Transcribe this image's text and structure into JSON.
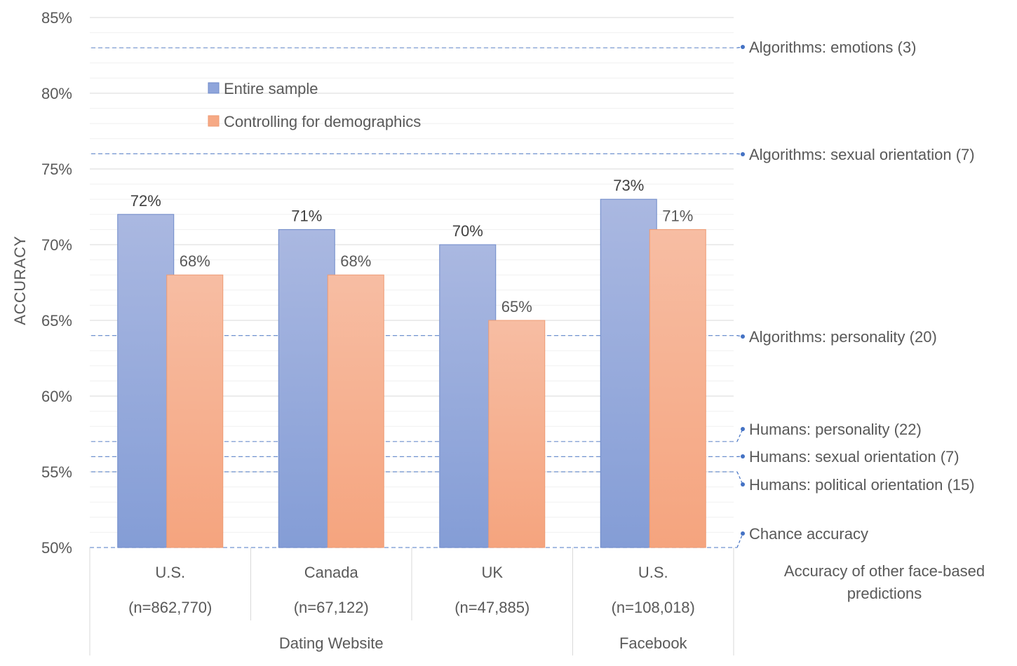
{
  "chart_data": {
    "type": "bar",
    "title": "",
    "xlabel": "",
    "ylabel": "ACCURACY",
    "ylim": [
      50,
      85
    ],
    "y_ticks": [
      "50%",
      "55%",
      "60%",
      "65%",
      "70%",
      "75%",
      "80%",
      "85%"
    ],
    "y_tick_values": [
      50,
      55,
      60,
      65,
      70,
      75,
      80,
      85
    ],
    "grid": true,
    "legend_position": "top-left",
    "categories": [
      {
        "label": "U.S.",
        "n": "(n=862,770)",
        "group": "Dating Website"
      },
      {
        "label": "Canada",
        "n": "(n=67,122)",
        "group": "Dating Website"
      },
      {
        "label": "UK",
        "n": "(n=47,885)",
        "group": "Dating Website"
      },
      {
        "label": "U.S.",
        "n": "(n=108,018)",
        "group": "Facebook"
      }
    ],
    "groups": [
      {
        "label": "Dating Website",
        "span": 3
      },
      {
        "label": "Facebook",
        "span": 1
      }
    ],
    "series": [
      {
        "name": "Entire sample",
        "color": "#8FA5DB",
        "values": [
          72,
          71,
          70,
          73
        ],
        "labels": [
          "72%",
          "71%",
          "70%",
          "73%"
        ]
      },
      {
        "name": "Controlling for demographics",
        "color": "#F6A985",
        "values": [
          68,
          68,
          65,
          71
        ],
        "labels": [
          "68%",
          "68%",
          "65%",
          "71%"
        ]
      }
    ],
    "reference_lines": [
      {
        "label": "Algorithms: emotions (3)",
        "value": 83
      },
      {
        "label": "Algorithms: sexual orientation (7)",
        "value": 76
      },
      {
        "label": "Algorithms: personality (20)",
        "value": 64
      },
      {
        "label": "Humans: personality (22)",
        "value": 57
      },
      {
        "label": "Humans: sexual orientation (7)",
        "value": 56
      },
      {
        "label": "Humans: political orientation (15)",
        "value": 55
      },
      {
        "label": "Chance accuracy",
        "value": 50
      }
    ],
    "reference_title": [
      "Accuracy of other face-based",
      "predictions"
    ],
    "reference_color": "#4472C4"
  }
}
